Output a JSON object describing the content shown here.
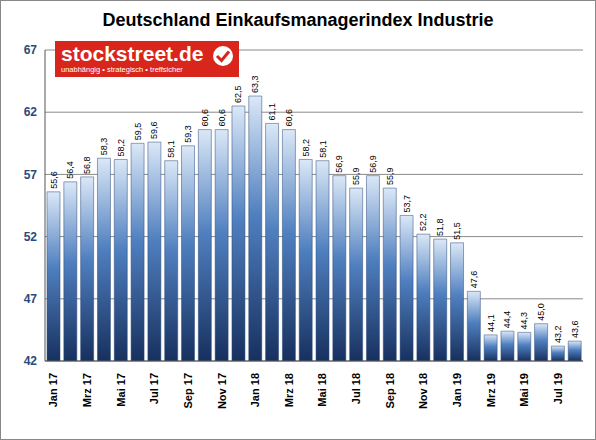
{
  "chart_data": {
    "type": "bar",
    "title": "Deutschland Einkaufsmanagerindex Industrie",
    "annotations": [
      "stockstreet.de",
      "unabhängig • strategisch • treffsicher"
    ],
    "categories": [
      "Jan 17",
      null,
      "Mrz 17",
      null,
      "Mai 17",
      null,
      "Jul 17",
      null,
      "Sep 17",
      null,
      "Nov 17",
      null,
      "Jan 18",
      null,
      "Mrz 18",
      null,
      "Mai 18",
      null,
      "Jul 18",
      null,
      "Sep 18",
      null,
      "Nov 18",
      null,
      "Jan 19",
      null,
      "Mrz 19",
      null,
      "Mai 19",
      null,
      "Jul 19",
      null
    ],
    "values": [
      55.6,
      56.4,
      56.8,
      58.3,
      58.2,
      59.5,
      59.6,
      58.1,
      59.3,
      60.6,
      60.6,
      62.5,
      63.3,
      61.1,
      60.6,
      58.2,
      58.1,
      56.9,
      55.9,
      56.9,
      55.9,
      53.7,
      52.2,
      51.8,
      51.5,
      47.6,
      44.1,
      44.4,
      44.3,
      45.0,
      43.2,
      43.6
    ],
    "value_labels": [
      "55,6",
      "56,4",
      "56,8",
      "58,3",
      "58,2",
      "59,5",
      "59,6",
      "58,1",
      "59,3",
      "60,6",
      "60,6",
      "62,5",
      "63,3",
      "61,1",
      "60,6",
      "58,2",
      "58,1",
      "56,9",
      "55,9",
      "56,9",
      "55,9",
      "53,7",
      "52,2",
      "51,8",
      "51,5",
      "47,6",
      "44,1",
      "44,4",
      "44,3",
      "45,0",
      "43,2",
      "43,6"
    ],
    "color": "#4f7fbf",
    "ylim": [
      42,
      67
    ],
    "yticks": [
      42,
      47,
      52,
      57,
      62,
      67
    ],
    "grid": true,
    "data_labels": true
  }
}
